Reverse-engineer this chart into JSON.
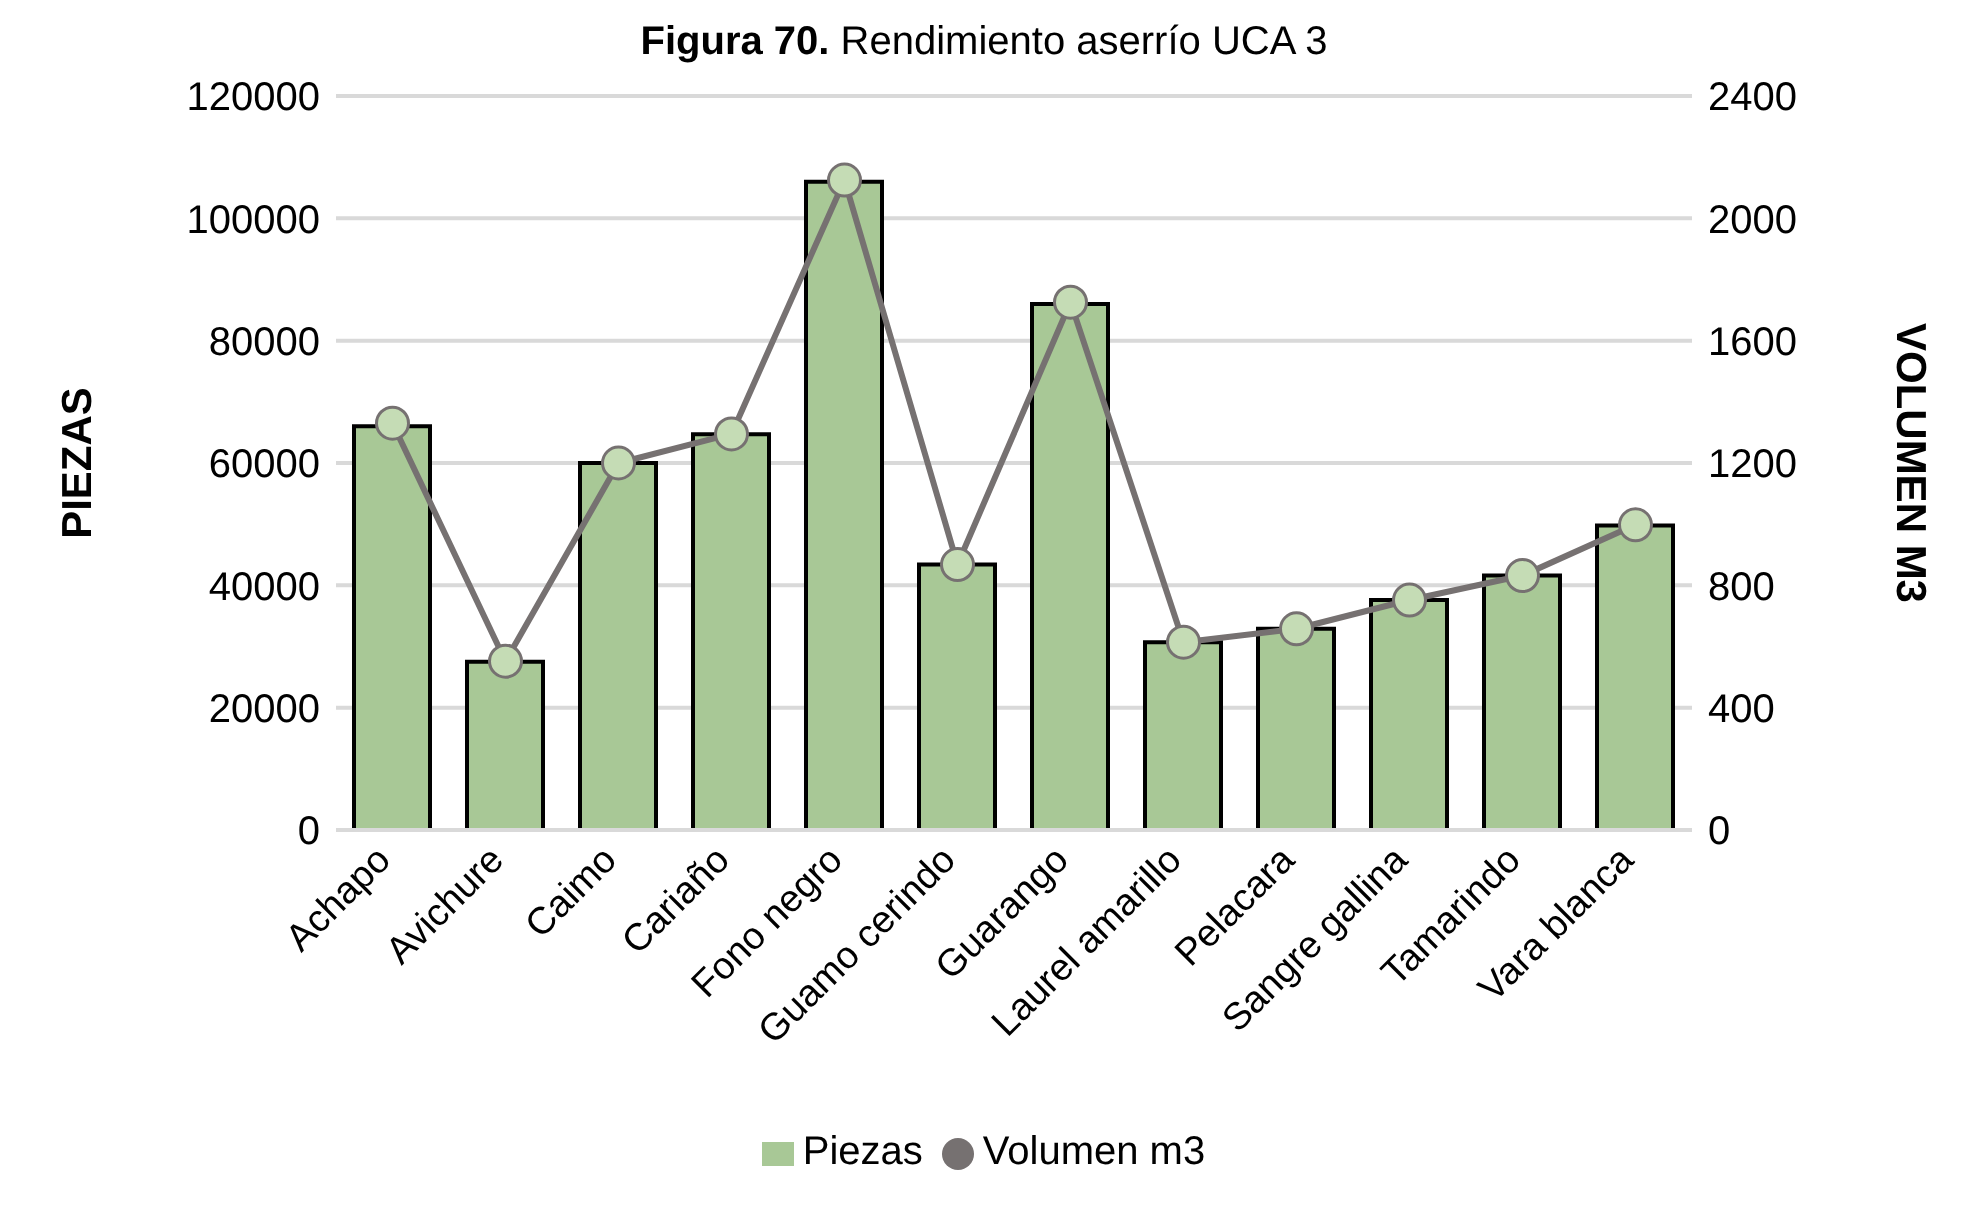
{
  "chart_data": {
    "type": "bar",
    "title": "Figura 70. Rendimiento aserrío UCA 3",
    "ylabel": "PIEZAS",
    "y2label": "VOLUMEN M3",
    "categories": [
      "Achapo",
      "Avichure",
      "Caimo",
      "Cariaño",
      "Fono negro",
      "Guamo cerindo",
      "Guarango",
      "Laurel amarillo",
      "Pelacara",
      "Sangre gallina",
      "Tamarindo",
      "Vara blanca"
    ],
    "series": [
      {
        "name": "Piezas",
        "color": "#a8c896",
        "values": [
          66000,
          27500,
          60000,
          64700,
          106000,
          43400,
          86000,
          30700,
          32900,
          37600,
          41600,
          49800
        ]
      },
      {
        "name": "Volumen m3",
        "type": "line",
        "axis": "y2",
        "color": "#767171",
        "values": [
          1330,
          552,
          1200,
          1295,
          2125,
          868,
          1726,
          614,
          658,
          752,
          832,
          998
        ]
      }
    ],
    "ylim": [
      0,
      120000
    ],
    "yticks": [
      0,
      20000,
      40000,
      60000,
      80000,
      100000,
      120000
    ],
    "y2lim": [
      0,
      2400
    ],
    "y2ticks": [
      0,
      400,
      800,
      1200,
      1600,
      2000,
      2400
    ],
    "grid": "y",
    "legend": "bottom",
    "marker": "circle"
  }
}
